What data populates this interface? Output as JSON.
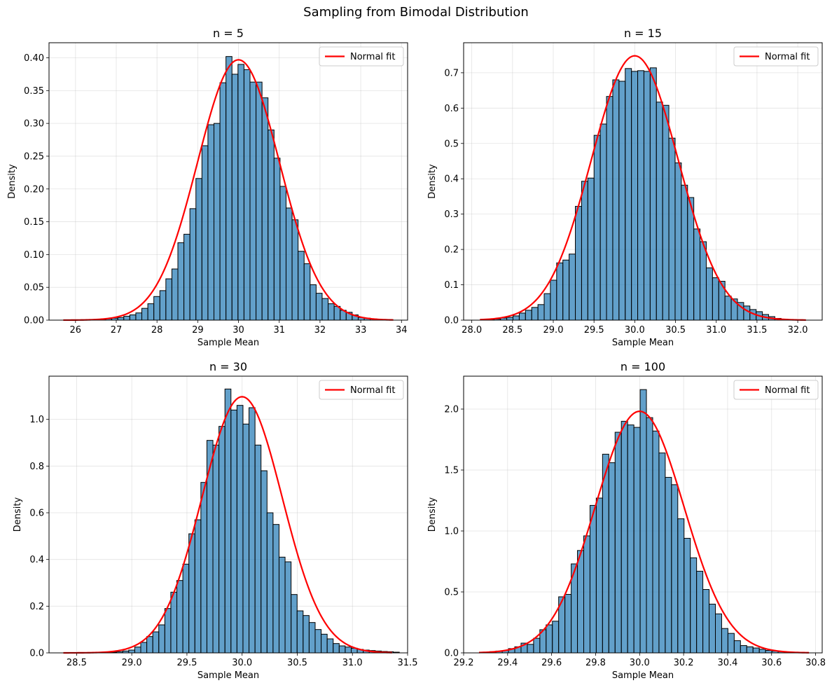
{
  "suptitle": "Sampling from Bimodal Distribution",
  "colors": {
    "bar_fill": "#1f77b4",
    "bar_edge": "#000000",
    "fit_line": "#ff0000",
    "grid": "#b0b0b0"
  },
  "chart_data": [
    {
      "type": "bar",
      "title": "n = 5",
      "xlabel": "Sample Mean",
      "ylabel": "Density",
      "xlim": [
        25.35,
        34.15
      ],
      "ylim": [
        0,
        0.423
      ],
      "xticks": [
        "26",
        "27",
        "28",
        "29",
        "30",
        "31",
        "32",
        "33",
        "34"
      ],
      "yticks": [
        "0.00",
        "0.05",
        "0.10",
        "0.15",
        "0.20",
        "0.25",
        "0.30",
        "0.35",
        "0.40"
      ],
      "grid": true,
      "legend": {
        "label": "Normal fit",
        "position": "top-right"
      },
      "bins": {
        "start": 26.3,
        "width": 0.1475
      },
      "values": [
        0.001,
        0.001,
        0.001,
        0.002,
        0.003,
        0.004,
        0.006,
        0.008,
        0.011,
        0.018,
        0.025,
        0.036,
        0.045,
        0.063,
        0.078,
        0.118,
        0.131,
        0.17,
        0.216,
        0.266,
        0.298,
        0.3,
        0.362,
        0.402,
        0.375,
        0.39,
        0.382,
        0.363,
        0.363,
        0.339,
        0.29,
        0.247,
        0.204,
        0.171,
        0.153,
        0.105,
        0.086,
        0.054,
        0.041,
        0.033,
        0.025,
        0.021,
        0.015,
        0.012,
        0.008,
        0.004,
        0.003,
        0.002,
        0.001,
        0.001
      ],
      "fit": {
        "label": "Normal fit",
        "mean": 30.0,
        "peak": 0.397,
        "x_range": [
          25.7,
          33.8
        ]
      }
    },
    {
      "type": "bar",
      "title": "n = 15",
      "xlabel": "Sample Mean",
      "ylabel": "Density",
      "xlim": [
        27.9,
        32.3
      ],
      "ylim": [
        0,
        0.785
      ],
      "xticks": [
        "28.0",
        "28.5",
        "29.0",
        "29.5",
        "30.0",
        "30.5",
        "31.0",
        "31.5",
        "32.0"
      ],
      "yticks": [
        "0.0",
        "0.1",
        "0.2",
        "0.3",
        "0.4",
        "0.5",
        "0.6",
        "0.7"
      ],
      "grid": true,
      "legend": {
        "label": "Normal fit",
        "position": "top-right"
      },
      "bins": {
        "start": 28.2,
        "width": 0.0765
      },
      "values": [
        0.001,
        0.003,
        0.006,
        0.008,
        0.012,
        0.02,
        0.028,
        0.036,
        0.044,
        0.075,
        0.113,
        0.162,
        0.17,
        0.187,
        0.322,
        0.393,
        0.402,
        0.523,
        0.555,
        0.633,
        0.68,
        0.676,
        0.712,
        0.704,
        0.706,
        0.704,
        0.714,
        0.617,
        0.608,
        0.515,
        0.445,
        0.382,
        0.347,
        0.258,
        0.222,
        0.148,
        0.12,
        0.11,
        0.068,
        0.06,
        0.05,
        0.04,
        0.03,
        0.024,
        0.016,
        0.01,
        0.005,
        0.003,
        0.002,
        0.001
      ],
      "fit": {
        "label": "Normal fit",
        "mean": 30.0,
        "peak": 0.748,
        "x_range": [
          28.1,
          32.1
        ]
      }
    },
    {
      "type": "bar",
      "title": "n = 30",
      "xlabel": "Sample Mean",
      "ylabel": "Density",
      "xlim": [
        28.25,
        31.5
      ],
      "ylim": [
        0,
        1.185
      ],
      "xticks": [
        "28.5",
        "29.0",
        "29.5",
        "30.0",
        "30.5",
        "31.0",
        "31.5"
      ],
      "yticks": [
        "0.0",
        "0.2",
        "0.4",
        "0.6",
        "0.8",
        "1.0"
      ],
      "grid": true,
      "legend": {
        "label": "Normal fit",
        "position": "top-right"
      },
      "bins": {
        "start": 28.7,
        "width": 0.0545
      },
      "values": [
        0.001,
        0.002,
        0.003,
        0.005,
        0.008,
        0.012,
        0.025,
        0.045,
        0.07,
        0.09,
        0.12,
        0.19,
        0.26,
        0.31,
        0.38,
        0.51,
        0.57,
        0.73,
        0.91,
        0.89,
        0.97,
        1.13,
        1.04,
        1.06,
        0.98,
        1.05,
        0.89,
        0.78,
        0.6,
        0.55,
        0.41,
        0.39,
        0.25,
        0.18,
        0.16,
        0.13,
        0.1,
        0.08,
        0.06,
        0.04,
        0.03,
        0.025,
        0.02,
        0.015,
        0.012,
        0.01,
        0.008,
        0.006,
        0.005,
        0.003
      ],
      "fit": {
        "label": "Normal fit",
        "mean": 30.0,
        "peak": 1.097,
        "x_range": [
          28.38,
          31.36
        ]
      }
    },
    {
      "type": "bar",
      "title": "n = 100",
      "xlabel": "Sample Mean",
      "ylabel": "Density",
      "xlim": [
        29.2,
        30.83
      ],
      "ylim": [
        0,
        2.27
      ],
      "xticks": [
        "29.2",
        "29.4",
        "29.6",
        "29.8",
        "30.0",
        "30.2",
        "30.4",
        "30.6",
        "30.8"
      ],
      "yticks": [
        "0.0",
        "0.5",
        "1.0",
        "1.5",
        "2.0"
      ],
      "grid": true,
      "legend": {
        "label": "Normal fit",
        "position": "top-right"
      },
      "bins": {
        "start": 29.29,
        "width": 0.0285
      },
      "values": [
        0.005,
        0.01,
        0.015,
        0.02,
        0.035,
        0.05,
        0.08,
        0.07,
        0.12,
        0.19,
        0.23,
        0.26,
        0.46,
        0.48,
        0.73,
        0.84,
        0.96,
        1.21,
        1.27,
        1.63,
        1.56,
        1.81,
        1.9,
        1.87,
        1.85,
        2.16,
        1.93,
        1.82,
        1.64,
        1.44,
        1.38,
        1.1,
        0.94,
        0.78,
        0.67,
        0.52,
        0.4,
        0.32,
        0.2,
        0.16,
        0.1,
        0.06,
        0.05,
        0.04,
        0.03,
        0.02,
        0.015,
        0.01,
        0.005,
        0.003
      ],
      "fit": {
        "label": "Normal fit",
        "mean": 30.0,
        "peak": 1.982,
        "x_range": [
          29.27,
          30.77
        ]
      }
    }
  ]
}
